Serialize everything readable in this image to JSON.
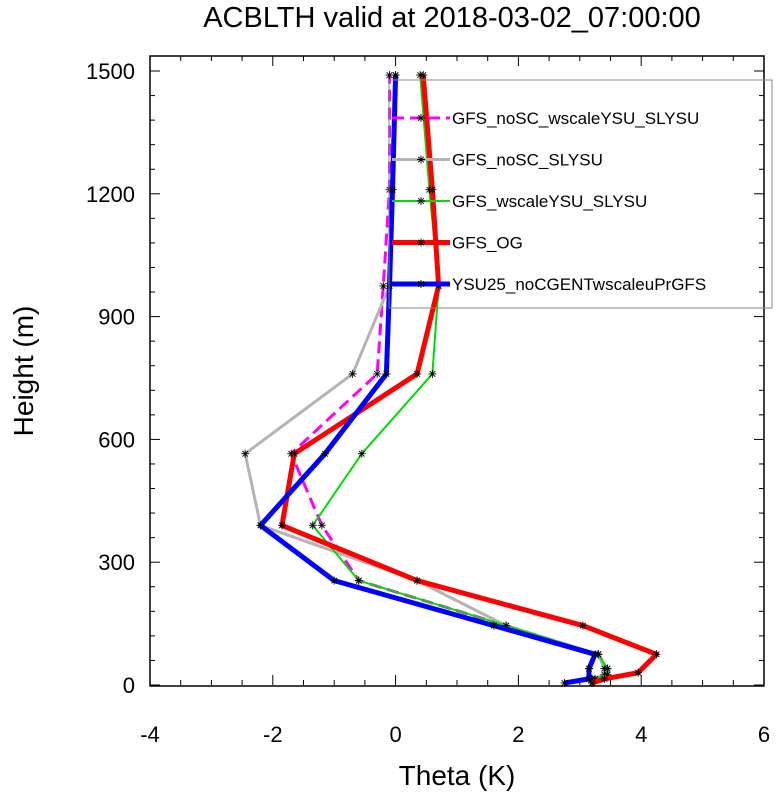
{
  "chart_data": {
    "type": "line",
    "title": "ACBLTH valid at 2018-03-02_07:00:00",
    "xlabel": "Theta (K)",
    "ylabel": "Height (m)",
    "xlim": [
      -4,
      6
    ],
    "ylim": [
      0,
      1500
    ],
    "xticks": [
      "-4",
      "-2",
      "0",
      "2",
      "4",
      "6"
    ],
    "yticks": [
      "0",
      "300",
      "600",
      "900",
      "1200",
      "1500"
    ],
    "grid": false,
    "legend_position": "top-right",
    "series": [
      {
        "name": "GFS_noSC_wscaleYSU_SLYSU",
        "color": "#ff00ff",
        "dash": true,
        "width": 3,
        "points": [
          [
            3.2,
            5
          ],
          [
            3.2,
            15
          ],
          [
            3.45,
            25
          ],
          [
            3.45,
            40
          ],
          [
            3.3,
            75
          ],
          [
            1.8,
            145
          ],
          [
            -0.6,
            255
          ],
          [
            -1.2,
            390
          ],
          [
            -1.7,
            565
          ],
          [
            -0.3,
            760
          ],
          [
            -0.2,
            975
          ],
          [
            -0.1,
            1210
          ],
          [
            -0.1,
            1490
          ]
        ]
      },
      {
        "name": "GFS_noSC_SLYSU",
        "color": "#b4b4b4",
        "dash": false,
        "width": 3,
        "points": [
          [
            3.2,
            5
          ],
          [
            3.2,
            15
          ],
          [
            3.4,
            25
          ],
          [
            3.4,
            40
          ],
          [
            3.3,
            75
          ],
          [
            1.8,
            145
          ],
          [
            0.35,
            255
          ],
          [
            -2.2,
            390
          ],
          [
            -2.45,
            565
          ],
          [
            -0.7,
            760
          ],
          [
            -0.1,
            975
          ],
          [
            -0.05,
            1210
          ],
          [
            0.0,
            1490
          ]
        ]
      },
      {
        "name": "GFS_wscaleYSU_SLYSU",
        "color": "#00dc00",
        "dash": false,
        "width": 2,
        "points": [
          [
            3.2,
            5
          ],
          [
            3.25,
            15
          ],
          [
            3.45,
            25
          ],
          [
            3.45,
            40
          ],
          [
            3.3,
            75
          ],
          [
            1.8,
            145
          ],
          [
            -0.6,
            255
          ],
          [
            -1.35,
            390
          ],
          [
            -0.55,
            565
          ],
          [
            0.6,
            760
          ],
          [
            0.7,
            975
          ],
          [
            0.55,
            1210
          ],
          [
            0.4,
            1490
          ]
        ]
      },
      {
        "name": "GFS_OG",
        "color": "#ff0000",
        "dash": false,
        "width": 5,
        "points": [
          [
            3.2,
            5
          ],
          [
            3.4,
            15
          ],
          [
            3.95,
            30
          ],
          [
            4.25,
            75
          ],
          [
            3.05,
            145
          ],
          [
            0.35,
            255
          ],
          [
            -1.85,
            390
          ],
          [
            -1.65,
            565
          ],
          [
            0.35,
            760
          ],
          [
            0.7,
            975
          ],
          [
            0.6,
            1210
          ],
          [
            0.45,
            1490
          ]
        ]
      },
      {
        "name": "YSU25_noCGENTwscaleuPrGFS",
        "color": "#0000ff",
        "dash": false,
        "width": 5,
        "points": [
          [
            2.75,
            5
          ],
          [
            3.15,
            15
          ],
          [
            3.15,
            40
          ],
          [
            3.25,
            75
          ],
          [
            1.6,
            145
          ],
          [
            -1.0,
            255
          ],
          [
            -2.2,
            390
          ],
          [
            -1.15,
            565
          ],
          [
            -0.15,
            760
          ],
          [
            -0.1,
            975
          ],
          [
            -0.05,
            1210
          ],
          [
            0.0,
            1490
          ]
        ]
      }
    ]
  }
}
